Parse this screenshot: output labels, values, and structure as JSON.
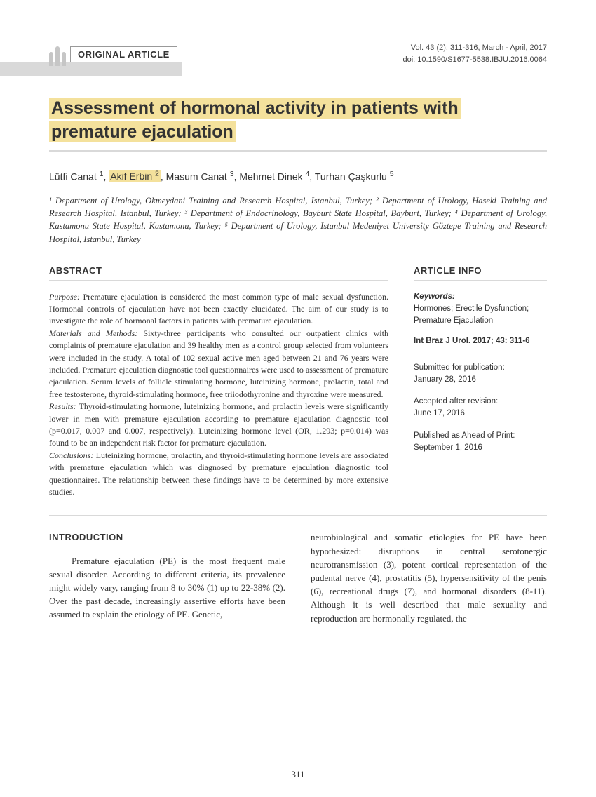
{
  "header": {
    "article_type": "ORIGINAL ARTICLE",
    "vol_line": "Vol. 43 (2): 311-316, March - April, 2017",
    "doi_line": "doi: 10.1590/S1677-5538.IBJU.2016.0064"
  },
  "title": "Assessment of hormonal activity in patients with premature ejaculation",
  "authors": {
    "a1": "Lütfi Canat ",
    "s1": "1",
    "sep1": ", ",
    "a2": "Akif Erbin ",
    "s2": "2",
    "sep2": ", ",
    "a3": "Masum Canat ",
    "s3": "3",
    "sep3": ", ",
    "a4": "Mehmet Dinek ",
    "s4": "4",
    "sep4": ", ",
    "a5": "Turhan Çaşkurlu ",
    "s5": "5"
  },
  "affiliations": "¹ Department of Urology, Okmeydani Training and Research Hospital, Istanbul, Turkey; ² Department of Urology, Haseki Training and Research Hospital, Istanbul, Turkey; ³ Department of Endocrinology, Bayburt State Hospital, Bayburt, Turkey; ⁴ Department of Urology, Kastamonu State Hospital, Kastamonu, Turkey; ⁵ Department of Urology, Istanbul Medeniyet University Göztepe Training and Research Hospital, Istanbul, Turkey",
  "abstract": {
    "heading": "ABSTRACT",
    "purpose_label": "Purpose: ",
    "purpose": "Premature ejaculation is considered the most common type of male sexual dysfunction. Hormonal controls of ejaculation have not been exactly elucidated. The aim of our study is to investigate the role of hormonal factors in patients with premature ejaculation.",
    "methods_label": "Materials and Methods: ",
    "methods": "Sixty-three participants who consulted our outpatient clinics with complaints of premature ejaculation and 39 healthy men as a control group selected from volunteers were included in the study. A total of 102 sexual active men aged between 21 and 76 years were included. Premature ejaculation diagnostic tool questionnaires were used to assessment of premature ejaculation. Serum levels of follicle stimulating hormone, luteinizing hormone, prolactin, total and free testosterone, thyroid-stimulating hormone, free triiodothyronine and thyroxine were measured.",
    "results_label": "Results: ",
    "results": "Thyroid-stimulating hormone, luteinizing hormone, and prolactin levels were significantly lower in men with premature ejaculation according to premature ejaculation diagnostic tool (p=0.017, 0.007 and 0.007, respectively). Luteinizing hormone level (OR, 1.293; p=0.014) was found to be an independent risk factor for premature ejaculation.",
    "conclusions_label": "Conclusions: ",
    "conclusions": "Luteinizing hormone, prolactin, and thyroid-stimulating hormone levels are associated with premature ejaculation which was diagnosed by premature ejaculation diagnostic tool questionnaires. The relationship between these findings have to be determined by more extensive studies."
  },
  "article_info": {
    "heading": "ARTICLE INFO",
    "keywords_label": "Keywords:",
    "keywords": "Hormones; Erectile Dysfunction; Premature Ejaculation",
    "citation": "Int Braz J Urol. 2017; 43: 311-6",
    "sub_label": "Submitted for publication:",
    "sub_date": "January 28, 2016",
    "acc_label": "Accepted after revision:",
    "acc_date": "June 17, 2016",
    "pub_label": "Published as Ahead of Print:",
    "pub_date": "September 1, 2016"
  },
  "intro": {
    "heading": "INTRODUCTION",
    "col1": "Premature ejaculation (PE) is the most frequent male sexual disorder. According to different criteria, its prevalence might widely vary, ranging from 8 to 30% (1) up to 22-38% (2). Over the past decade, increasingly assertive efforts have been assumed to explain the etiology of PE. Genetic,",
    "col2": "neurobiological and somatic etiologies for PE have been hypothesized: disruptions in central serotonergic neurotransmission (3), potent cortical representation of the pudental nerve (4), prostatitis (5), hypersensitivity of the penis (6), recreational drugs (7), and hormonal disorders (8-11). Although it is well described that male sexuality and reproduction are hormonally regulated, the"
  },
  "page_number": "311"
}
